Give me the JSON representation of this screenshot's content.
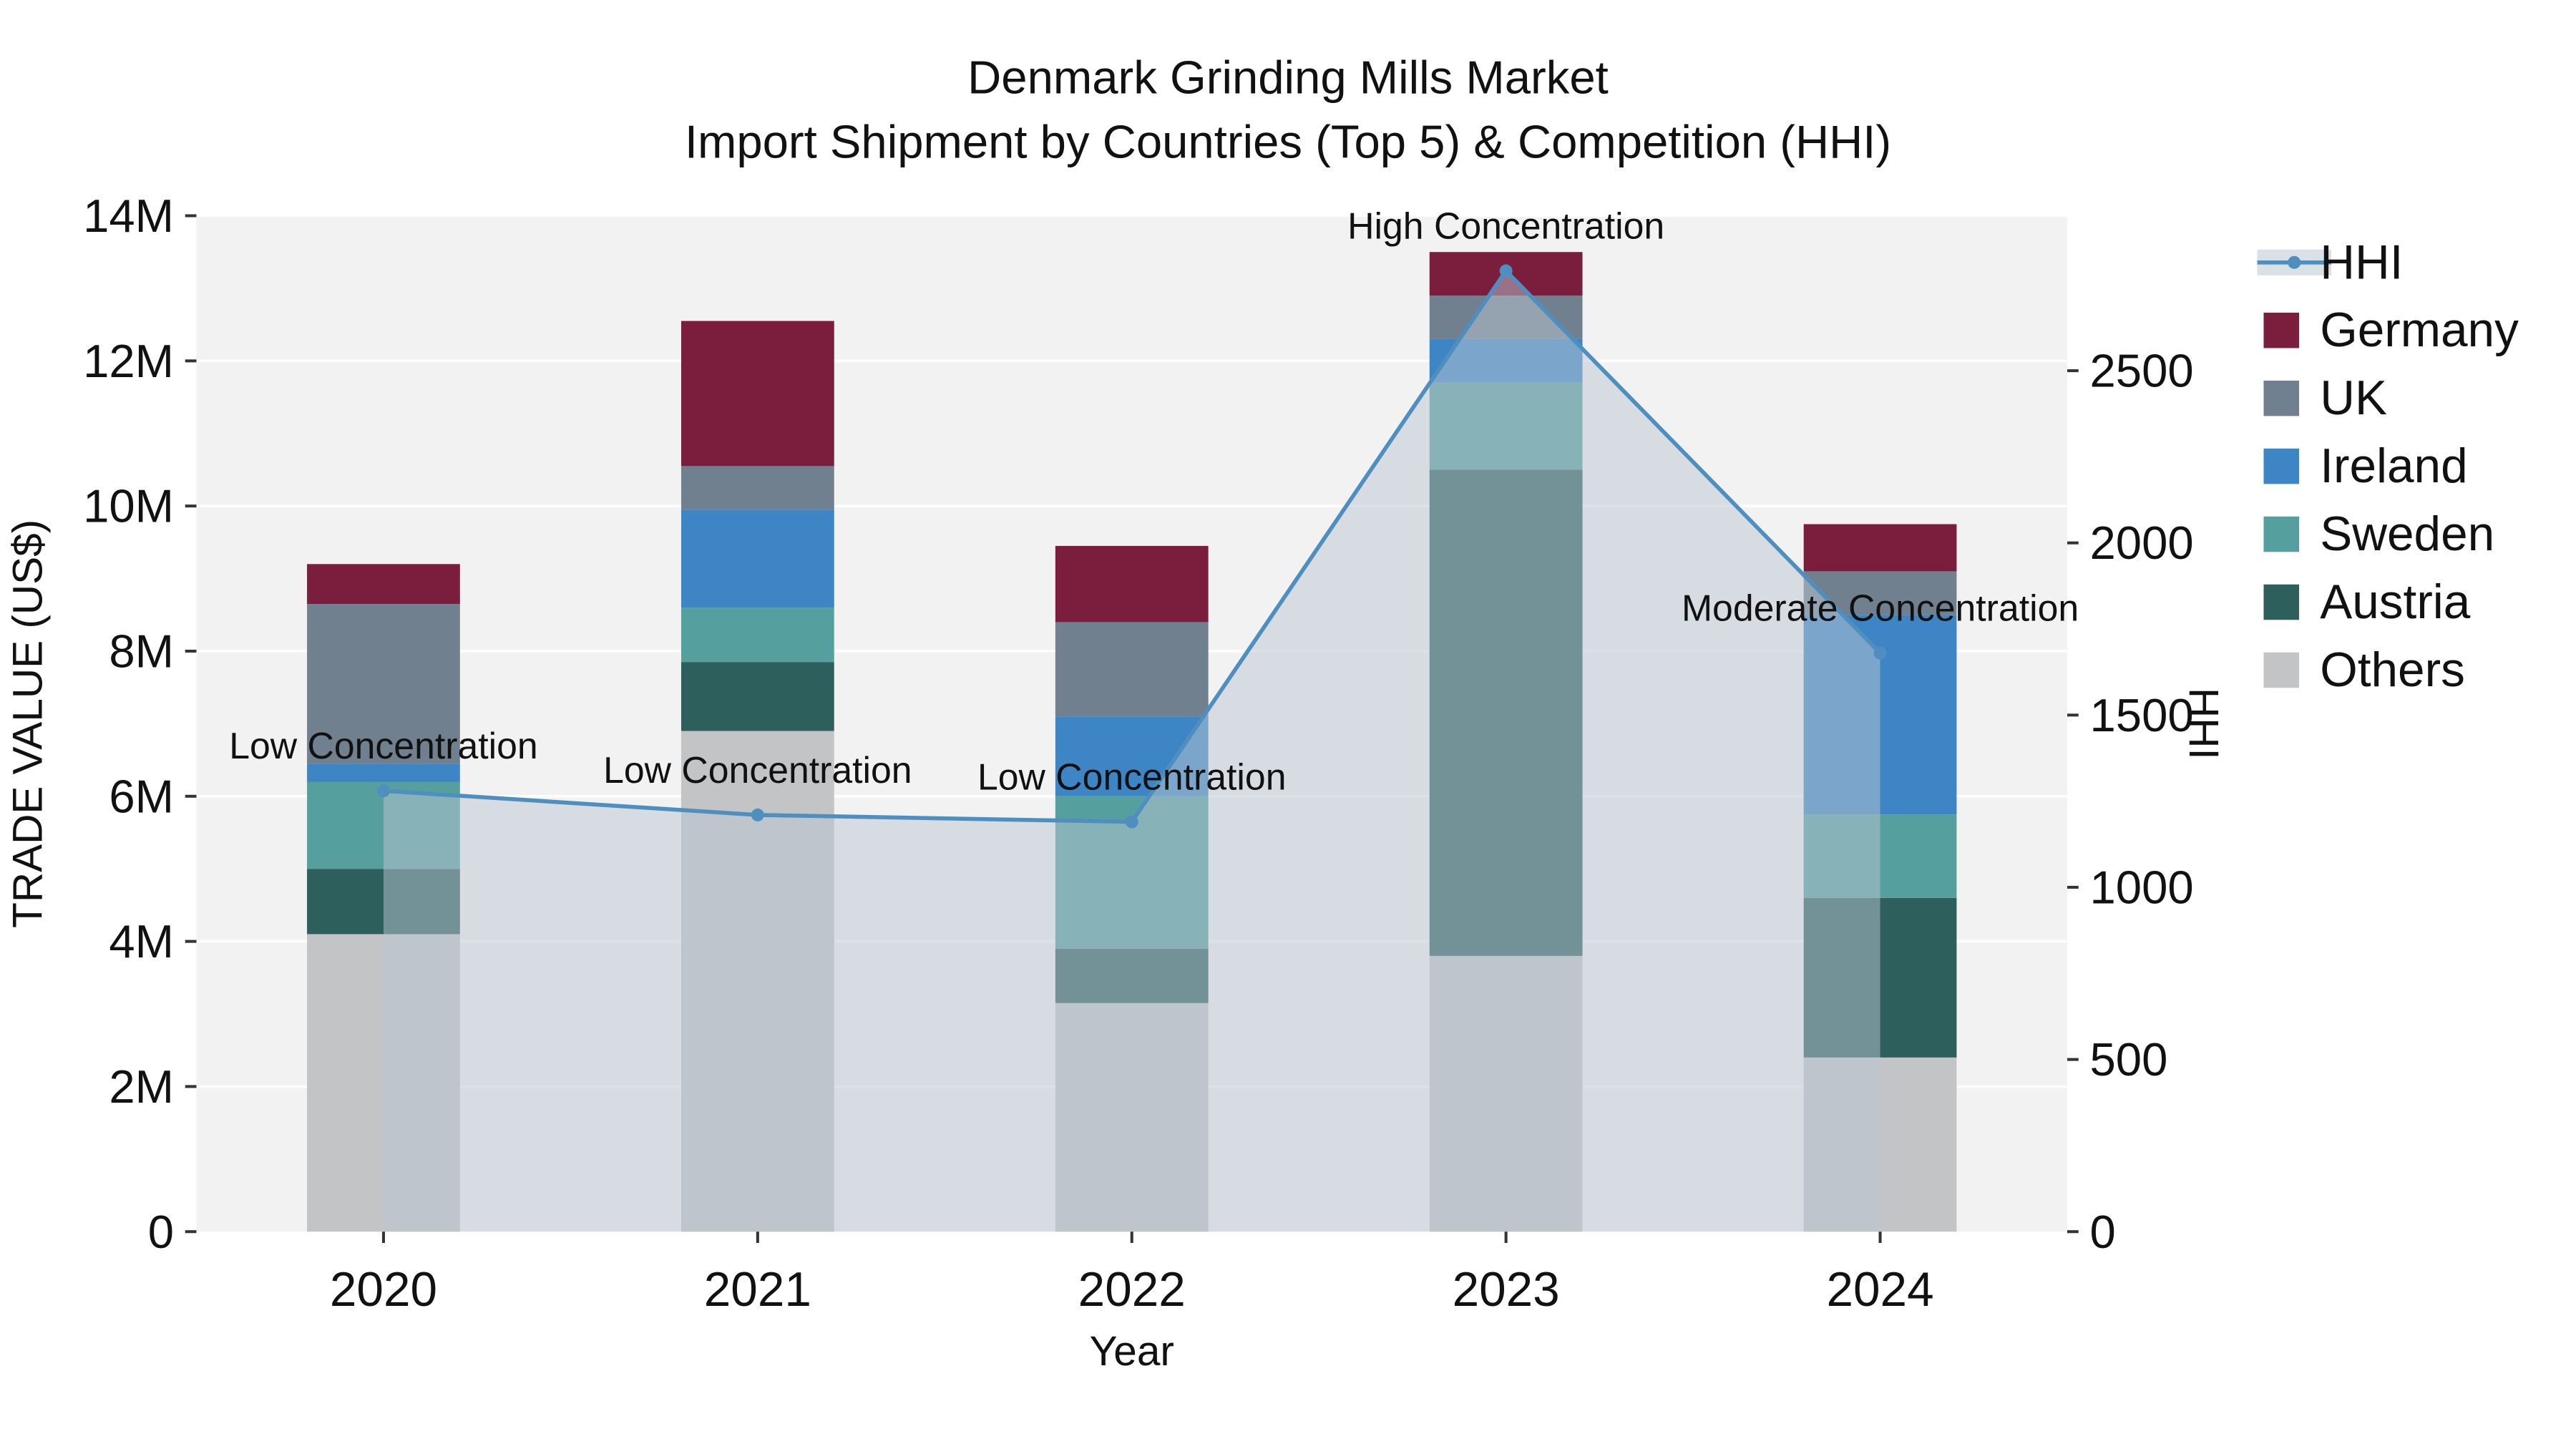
{
  "chart_data": {
    "type": "combo-stacked-bar-line",
    "title": "Denmark Grinding Mills Market",
    "subtitle": "Import Shipment by Countries (Top 5) & Competition (HHI)",
    "xlabel": "Year",
    "ylabel_left": "TRADE VALUE (US$)",
    "ylabel_right": "HHI",
    "categories": [
      "2020",
      "2021",
      "2022",
      "2023",
      "2024"
    ],
    "left_axis": {
      "ticks": [
        "0",
        "2M",
        "4M",
        "6M",
        "8M",
        "10M",
        "12M",
        "14M"
      ],
      "values": [
        0,
        2,
        4,
        6,
        8,
        10,
        12,
        14
      ],
      "max": 14,
      "unit": "million US$"
    },
    "right_axis": {
      "ticks": [
        0,
        500,
        1000,
        1500,
        2000,
        2500
      ],
      "max": 2950
    },
    "bar_unit": "M",
    "bar_series": [
      {
        "name": "Others",
        "color": "#c2c4c6",
        "values": [
          4.1,
          6.9,
          3.15,
          3.8,
          2.4
        ]
      },
      {
        "name": "Austria",
        "color": "#2d5f5c",
        "values": [
          0.9,
          0.95,
          0.75,
          6.7,
          2.2
        ]
      },
      {
        "name": "Sweden",
        "color": "#55a09e",
        "values": [
          1.2,
          0.75,
          2.1,
          1.2,
          1.15
        ]
      },
      {
        "name": "Ireland",
        "color": "#3d85c4",
        "values": [
          0.25,
          1.35,
          1.1,
          0.6,
          2.75
        ]
      },
      {
        "name": "UK",
        "color": "#71808f",
        "values": [
          2.2,
          0.6,
          1.3,
          0.6,
          0.6
        ]
      },
      {
        "name": "Germany",
        "color": "#7b1e3e",
        "values": [
          0.55,
          2.0,
          1.05,
          0.6,
          0.65
        ]
      }
    ],
    "bar_totals": [
      9.2,
      12.55,
      9.45,
      13.5,
      9.75
    ],
    "line_series": {
      "name": "HHI",
      "color": "#4e8fc0",
      "fill_color": "#b9c6d2",
      "values": [
        1280,
        1210,
        1190,
        2790,
        1680
      ]
    },
    "annotations": [
      {
        "year": "2020",
        "text": "Low Concentration"
      },
      {
        "year": "2021",
        "text": "Low Concentration"
      },
      {
        "year": "2022",
        "text": "Low Concentration"
      },
      {
        "year": "2023",
        "text": "High Concentration"
      },
      {
        "year": "2024",
        "text": "Moderate Concentration"
      }
    ],
    "legend": [
      "HHI",
      "Germany",
      "UK",
      "Ireland",
      "Sweden",
      "Austria",
      "Others"
    ],
    "legend_position": "right",
    "grid": true,
    "plot_background": "#f2f2f2"
  }
}
